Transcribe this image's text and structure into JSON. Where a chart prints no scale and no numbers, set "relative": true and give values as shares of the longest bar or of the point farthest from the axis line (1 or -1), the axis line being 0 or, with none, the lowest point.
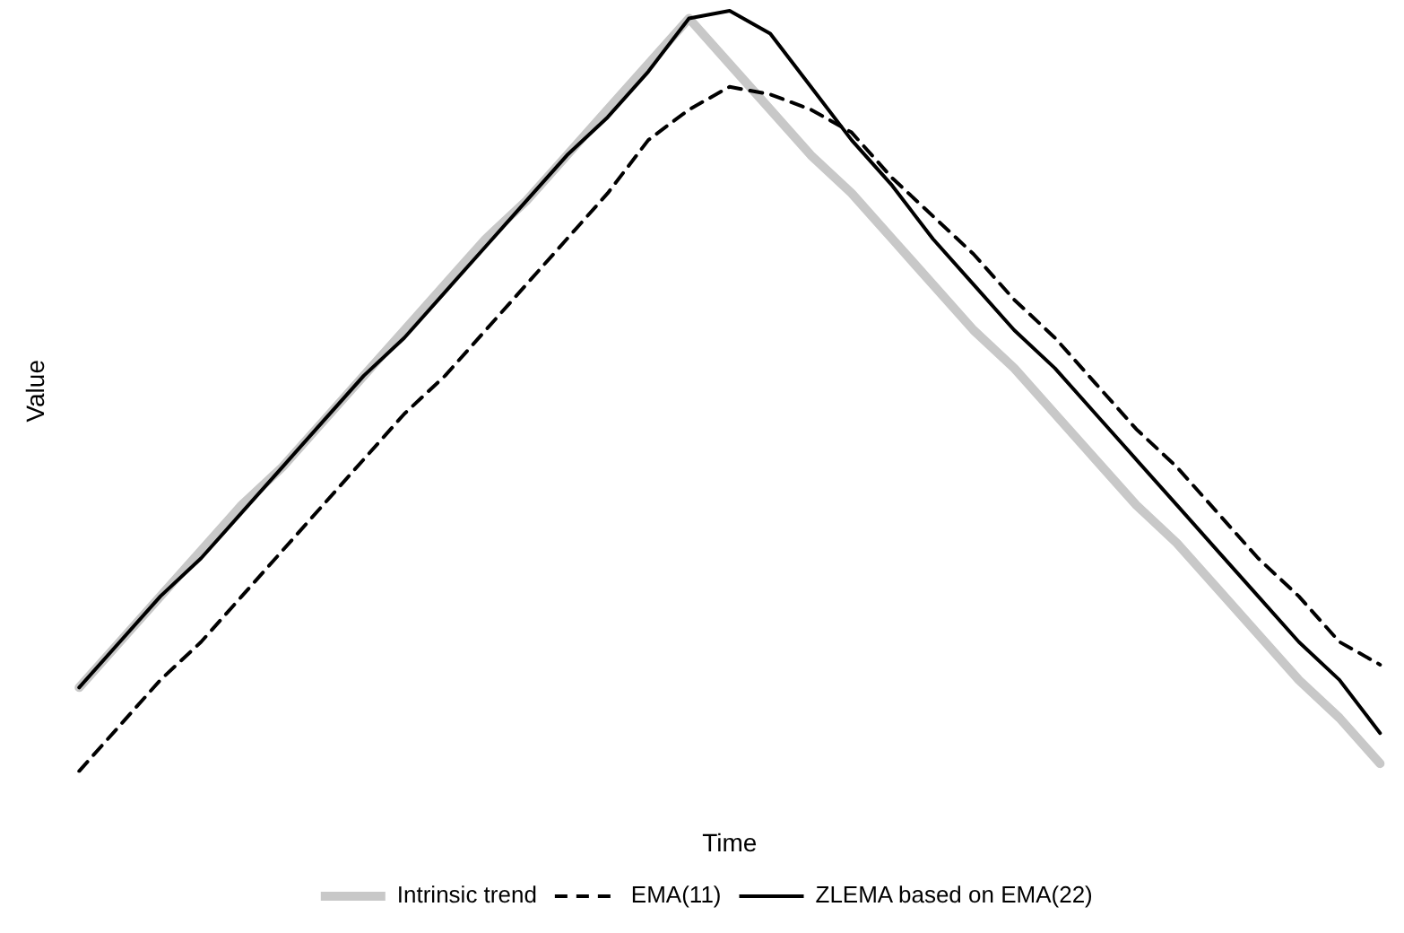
{
  "chart_data": {
    "type": "line",
    "relative": true,
    "xlabel": "Time",
    "ylabel": "Value",
    "legend": "bottom",
    "categories": [
      null,
      null,
      null,
      null,
      null,
      null,
      null,
      null,
      null,
      null,
      null,
      null,
      null,
      null,
      null,
      null,
      null,
      null,
      null,
      null,
      null,
      null,
      null,
      null,
      null,
      null,
      null,
      null,
      null,
      null,
      null,
      null,
      null
    ],
    "series": [
      {
        "name": "Intrinsic trend",
        "color": "#c8c8c8",
        "line_style": "solid",
        "values": [
          0.11,
          0.17,
          0.23,
          0.29,
          0.35,
          0.4,
          0.46,
          0.52,
          0.58,
          0.64,
          0.7,
          0.75,
          0.81,
          0.87,
          0.93,
          0.99,
          0.93,
          0.87,
          0.81,
          0.76,
          0.7,
          0.64,
          0.58,
          0.53,
          0.47,
          0.41,
          0.35,
          0.3,
          0.24,
          0.18,
          0.12,
          0.07,
          0.01
        ]
      },
      {
        "name": "EMA(11)",
        "color": "#000000",
        "line_style": "dashed",
        "values": [
          0,
          0.06,
          0.12,
          0.17,
          0.23,
          0.29,
          0.35,
          0.41,
          0.47,
          0.52,
          0.58,
          0.64,
          0.7,
          0.76,
          0.83,
          0.87,
          0.9,
          0.89,
          0.87,
          0.84,
          0.78,
          0.73,
          0.68,
          0.62,
          0.57,
          0.51,
          0.45,
          0.4,
          0.34,
          0.28,
          0.23,
          0.17,
          0.14
        ]
      },
      {
        "name": "ZLEMA based on EMA(22)",
        "color": "#000000",
        "line_style": "solid",
        "values": [
          0.11,
          0.17,
          0.23,
          0.28,
          0.34,
          0.4,
          0.46,
          0.52,
          0.57,
          0.63,
          0.69,
          0.75,
          0.81,
          0.86,
          0.92,
          0.99,
          1,
          0.97,
          0.9,
          0.83,
          0.77,
          0.7,
          0.64,
          0.58,
          0.53,
          0.47,
          0.41,
          0.35,
          0.29,
          0.23,
          0.17,
          0.12,
          0.05
        ]
      }
    ]
  }
}
